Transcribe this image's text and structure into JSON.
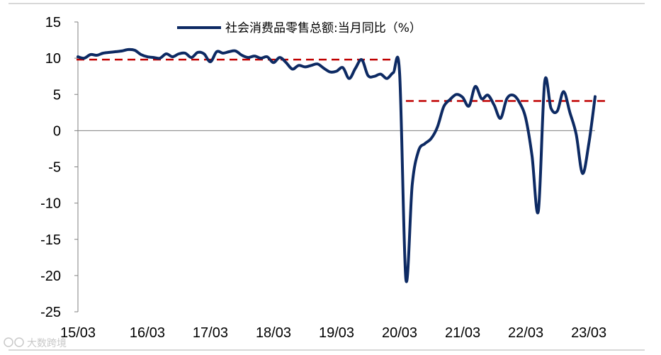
{
  "chart_data": {
    "type": "line",
    "title": "",
    "xlabel": "",
    "ylabel": "",
    "ylim": [
      -25,
      15
    ],
    "y_ticks": [
      15,
      10,
      5,
      0,
      -5,
      -10,
      -15,
      -20,
      -25
    ],
    "y_tick_labels": [
      "15",
      "10",
      "5",
      "0",
      "-5",
      "-10",
      "-15",
      "-20",
      "-25"
    ],
    "x_tick_labels": [
      "15/03",
      "16/03",
      "17/03",
      "18/03",
      "19/03",
      "20/03",
      "21/03",
      "22/03",
      "23/03"
    ],
    "x_tick_index": [
      0,
      11,
      21,
      31,
      41,
      51,
      61,
      71,
      81
    ],
    "grid": false,
    "legend_position": "top",
    "series": [
      {
        "name": "社会消费品零售总额:当月同比（%）",
        "color": "#0d2a63",
        "x": [
          "15/03",
          "15/04",
          "15/05",
          "15/06",
          "15/07",
          "15/08",
          "15/09",
          "15/10",
          "15/11",
          "15/12",
          "16/01",
          "16/03",
          "16/04",
          "16/05",
          "16/06",
          "16/07",
          "16/08",
          "16/09",
          "16/10",
          "16/11",
          "16/12",
          "17/01",
          "17/03",
          "17/04",
          "17/05",
          "17/06",
          "17/07",
          "17/08",
          "17/09",
          "17/10",
          "17/11",
          "17/12",
          "18/03",
          "18/04",
          "18/05",
          "18/06",
          "18/07",
          "18/08",
          "18/09",
          "18/10",
          "18/11",
          "18/12",
          "19/03",
          "19/04",
          "19/05",
          "19/06",
          "19/07",
          "19/08",
          "19/09",
          "19/10",
          "19/11",
          "19/12",
          "20/03",
          "20/04",
          "20/05",
          "20/06",
          "20/07",
          "20/08",
          "20/09",
          "20/10",
          "20/11",
          "20/12",
          "21/03",
          "21/04",
          "21/05",
          "21/06",
          "21/07",
          "21/08",
          "21/09",
          "21/10",
          "21/11",
          "21/12",
          "22/03",
          "22/04",
          "22/05",
          "22/06",
          "22/07",
          "22/08",
          "22/09",
          "22/10",
          "22/11",
          "22/12",
          "23/03"
        ],
        "values": [
          10.2,
          10.0,
          10.5,
          10.4,
          10.7,
          10.8,
          10.9,
          11.0,
          11.2,
          11.1,
          10.5,
          10.2,
          10.1,
          10.0,
          10.6,
          10.2,
          10.6,
          10.7,
          10.1,
          10.8,
          10.6,
          9.5,
          10.9,
          10.7,
          10.9,
          11.0,
          10.4,
          10.1,
          10.3,
          10.0,
          10.2,
          9.4,
          10.1,
          9.4,
          8.5,
          9.0,
          8.8,
          9.0,
          9.2,
          8.6,
          8.1,
          8.2,
          8.7,
          7.2,
          8.6,
          9.8,
          7.6,
          7.5,
          7.8,
          7.2,
          8.0,
          8.0,
          -20.5,
          -7.5,
          -2.8,
          -1.8,
          -1.1,
          0.5,
          3.3,
          4.3,
          5.0,
          4.6,
          3.4,
          6.1,
          4.4,
          4.9,
          3.5,
          1.7,
          4.4,
          4.9,
          3.9,
          1.7,
          -3.5,
          -11.1,
          6.7,
          3.1,
          2.7,
          5.4,
          2.5,
          -0.5,
          -5.9,
          -1.8,
          4.7
        ],
        "line_width": 4
      }
    ],
    "reference_lines": [
      {
        "name": "",
        "color": "#c00000",
        "style": "dashed",
        "y": 9.8,
        "x_start": "15/03",
        "x_end": "19/12"
      },
      {
        "name": "",
        "color": "#c00000",
        "style": "dashed",
        "y": 4.1,
        "x_start": "20/03",
        "x_end": "23/03"
      }
    ]
  },
  "watermark": {
    "text": "大数跨境",
    "icon": "brand-logo-icon"
  }
}
